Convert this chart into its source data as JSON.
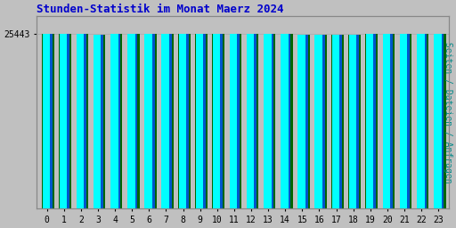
{
  "title": "Stunden-Statistik im Monat Maerz 2024",
  "title_color": "#0000cc",
  "title_fontsize": 9,
  "ylabel": "Seiten / Dateien / Anfragen",
  "ylabel_color": "#008888",
  "ylabel_fontsize": 7,
  "xlabel_labels": [
    "0",
    "1",
    "2",
    "3",
    "4",
    "5",
    "6",
    "7",
    "8",
    "9",
    "10",
    "11",
    "12",
    "13",
    "14",
    "15",
    "16",
    "17",
    "18",
    "19",
    "20",
    "21",
    "22",
    "23"
  ],
  "ytick_label": "25443",
  "background_color": "#c0c0c0",
  "plot_bg_color": "#c0c0c0",
  "bar_face_color": "#00ffff",
  "bar_blue_color": "#0055cc",
  "bar_shadow_color": "#006600",
  "ylim_min": 0,
  "ylim_max": 28000,
  "font_family": "monospace",
  "bar_heights": [
    25443,
    25430,
    25450,
    25360,
    25400,
    25430,
    25490,
    25500,
    25470,
    25460,
    25440,
    25400,
    25410,
    25415,
    25410,
    25370,
    25340,
    25330,
    25340,
    25450,
    25440,
    25435,
    25420,
    25400
  ]
}
